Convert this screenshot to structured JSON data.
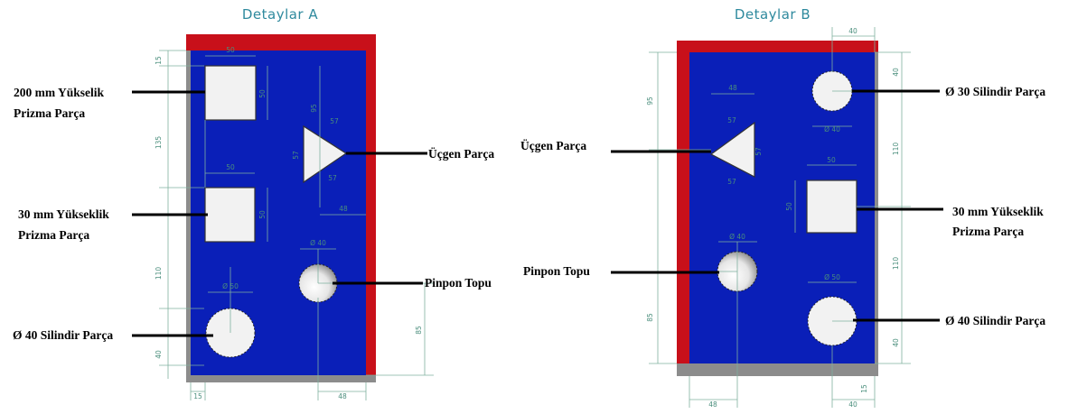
{
  "panelA": {
    "title": "Detaylar A",
    "labels": {
      "prism200_line1": "200 mm Yükselik",
      "prism200_line2": "Prizma Parça",
      "prism30_line1": "30 mm Yükseklik",
      "prism30_line2": "Prizma Parça",
      "cyl40": "Ø 40 Silindir Parça",
      "triangle": "Üçgen Parça",
      "pingpong": "Pinpon Topu"
    },
    "dims": {
      "top": "15",
      "sq1_w": "50",
      "sq1_h": "50",
      "left_135": "135",
      "tri_95": "95",
      "tri_s1": "57",
      "tri_s2": "57",
      "tri_s3": "57",
      "tri_48": "48",
      "sq2_w": "50",
      "sq2_h": "50",
      "left_110": "110",
      "ball_d": "Ø 40",
      "cyl_d": "Ø 50",
      "right_85": "85",
      "left_40": "40",
      "bottom_15": "15",
      "bottom_48": "48"
    }
  },
  "panelB": {
    "title": "Detaylar B",
    "labels": {
      "cyl30": "Ø 30 Silindir Parça",
      "triangle": "Üçgen Parça",
      "prism30_line1": "30 mm Yükseklik",
      "prism30_line2": "Prizma Parça",
      "pingpong": "Pinpon Topu",
      "cyl40": "Ø 40 Silindir Parça"
    },
    "dims": {
      "top_40": "40",
      "right_40": "40",
      "left_95": "95",
      "tri_48": "48",
      "tri_s1": "57",
      "tri_s2": "57",
      "tri_s3": "57",
      "cyl_d": "Ø 40",
      "right_110a": "110",
      "sq_w": "50",
      "sq_h": "50",
      "ball_d": "Ø 40",
      "right_110b": "110",
      "cyl2_d": "Ø 50",
      "left_85": "85",
      "right_40b": "40",
      "bottom_48": "48",
      "bottom_40": "40",
      "bottom_15": "15"
    }
  },
  "colors": {
    "plate": "#0a1fb8",
    "frame": "#c8101a",
    "base": "#8c8c8c"
  }
}
